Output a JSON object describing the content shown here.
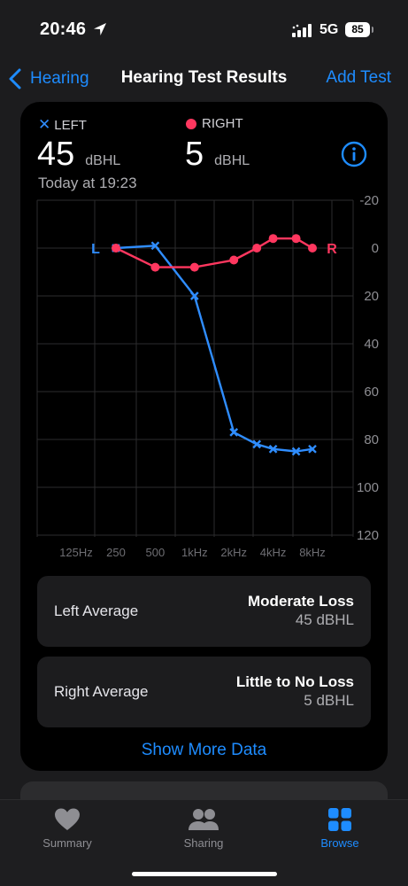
{
  "status": {
    "time": "20:46",
    "network": "5G",
    "battery": "85"
  },
  "nav": {
    "back_label": "Hearing",
    "title": "Hearing Test Results",
    "action_label": "Add Test"
  },
  "summary": {
    "left": {
      "label": "LEFT",
      "value": "45",
      "unit": "dBHL"
    },
    "right": {
      "label": "RIGHT",
      "value": "5",
      "unit": "dBHL"
    },
    "timestamp": "Today at 19:23"
  },
  "chart_data": {
    "type": "line",
    "x_tick_labels": [
      "125Hz",
      "250",
      "500",
      "1kHz",
      "2kHz",
      "4kHz",
      "8kHz"
    ],
    "y_ticks": [
      -20,
      0,
      20,
      40,
      60,
      80,
      100,
      120
    ],
    "ylim": [
      -20,
      120
    ],
    "y_inverted": true,
    "ylabel": "",
    "xlabel": "",
    "grid": true,
    "series_markers": {
      "left": "L",
      "right": "R"
    },
    "series": [
      {
        "name": "LEFT",
        "color": "#2f8dff",
        "marker": "x",
        "points": [
          {
            "freq": 250,
            "db": 0
          },
          {
            "freq": 500,
            "db": -1
          },
          {
            "freq": 1000,
            "db": 20
          },
          {
            "freq": 2000,
            "db": 77
          },
          {
            "freq": 3000,
            "db": 82
          },
          {
            "freq": 4000,
            "db": 84
          },
          {
            "freq": 6000,
            "db": 85
          },
          {
            "freq": 8000,
            "db": 84
          }
        ]
      },
      {
        "name": "RIGHT",
        "color": "#ff375f",
        "marker": "dot",
        "points": [
          {
            "freq": 250,
            "db": 0
          },
          {
            "freq": 500,
            "db": 8
          },
          {
            "freq": 1000,
            "db": 8
          },
          {
            "freq": 2000,
            "db": 5
          },
          {
            "freq": 3000,
            "db": 0
          },
          {
            "freq": 4000,
            "db": -4
          },
          {
            "freq": 6000,
            "db": -4
          },
          {
            "freq": 8000,
            "db": 0
          }
        ]
      }
    ]
  },
  "averages": {
    "left": {
      "label": "Left Average",
      "category": "Moderate Loss",
      "value": "45 dBHL"
    },
    "right": {
      "label": "Right Average",
      "category": "Little to No Loss",
      "value": "5 dBHL"
    }
  },
  "show_more_label": "Show More Data",
  "tabs": [
    {
      "label": "Summary",
      "icon": "heart-icon",
      "active": false
    },
    {
      "label": "Sharing",
      "icon": "people-icon",
      "active": false
    },
    {
      "label": "Browse",
      "icon": "grid-icon",
      "active": true
    }
  ],
  "colors": {
    "accent": "#1e8cff",
    "left": "#2f8dff",
    "right": "#ff375f"
  }
}
